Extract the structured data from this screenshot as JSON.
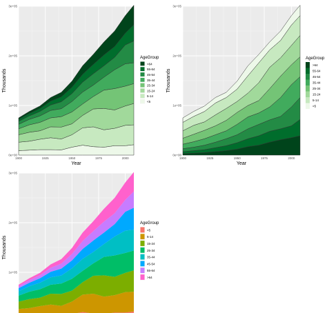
{
  "chart_data": [
    {
      "type": "area",
      "stacking": "stacked, inverted order (<5 at bottom)",
      "palette": "Greens (dark for >64)",
      "xlabel": "Year",
      "ylabel": "Thousands",
      "xlim": [
        1900,
        2008
      ],
      "ylim": [
        0,
        300000
      ],
      "x_ticks": [
        "1900",
        "1925",
        "1950",
        "1975",
        "2000"
      ],
      "y_ticks": [
        "0e+00",
        "1e+05",
        "2e+05",
        "3e+05"
      ],
      "grid": true,
      "legend_placement": "right",
      "legend_title": "AgeGroup",
      "legend_labels": [
        ">64",
        "55-64",
        "45-54",
        "35-44",
        "25-34",
        "15-24",
        "5-14",
        "<5"
      ],
      "series_colors": [
        "#00441b",
        "#006d2c",
        "#238b45",
        "#41ab5d",
        "#74c476",
        "#a1d99b",
        "#c7e9c0",
        "#edf8e9"
      ],
      "x": [
        1900,
        1910,
        1920,
        1930,
        1940,
        1950,
        1960,
        1970,
        1980,
        1990,
        2000,
        2008
      ],
      "series": [
        {
          "name": "<5",
          "values": [
            9000,
            10000,
            11000,
            11000,
            10500,
            16000,
            20000,
            17000,
            16000,
            19000,
            19000,
            21000
          ]
        },
        {
          "name": "5-14",
          "values": [
            17000,
            18000,
            21000,
            24000,
            22000,
            25000,
            35000,
            40000,
            35000,
            35000,
            41000,
            40000
          ]
        },
        {
          "name": "15-24",
          "values": [
            15000,
            18000,
            17000,
            22000,
            24000,
            22000,
            25000,
            36000,
            43000,
            37000,
            39000,
            43000
          ]
        },
        {
          "name": "25-34",
          "values": [
            12000,
            15000,
            17000,
            18000,
            21000,
            24000,
            23000,
            25000,
            37000,
            43000,
            40000,
            40000
          ]
        },
        {
          "name": "35-44",
          "values": [
            9000,
            11000,
            13000,
            15000,
            16000,
            21000,
            24000,
            23000,
            26000,
            38000,
            45000,
            42000
          ]
        },
        {
          "name": "45-54",
          "values": [
            6000,
            7000,
            9000,
            11000,
            14000,
            16000,
            20000,
            23000,
            23000,
            25000,
            38000,
            44000
          ]
        },
        {
          "name": "55-64",
          "values": [
            4000,
            5000,
            6000,
            8000,
            10000,
            13000,
            16000,
            19000,
            22000,
            22000,
            24000,
            33000
          ]
        },
        {
          "name": ">64",
          "values": [
            3000,
            4000,
            5000,
            7000,
            9000,
            12000,
            17000,
            20000,
            26000,
            31000,
            35000,
            39000
          ]
        }
      ]
    },
    {
      "type": "area",
      "stacking": "stacked, default order (>64 at bottom)",
      "palette": "Greens (dark for >64)",
      "xlabel": "Year",
      "ylabel": "Thousands",
      "xlim": [
        1900,
        2008
      ],
      "ylim": [
        0,
        300000
      ],
      "x_ticks": [
        "1900",
        "1925",
        "1950",
        "1975",
        "2000"
      ],
      "y_ticks": [
        "0e+00",
        "1e+05",
        "2e+05",
        "3e+05"
      ],
      "grid": true,
      "legend_placement": "right",
      "legend_title": "AgeGroup",
      "legend_labels": [
        ">64",
        "55-64",
        "45-54",
        "35-44",
        "25-34",
        "15-24",
        "5-14",
        "<5"
      ],
      "series_colors": [
        "#00441b",
        "#006d2c",
        "#238b45",
        "#41ab5d",
        "#74c476",
        "#a1d99b",
        "#c7e9c0",
        "#edf8e9"
      ]
    },
    {
      "type": "area",
      "stacking": "stacked, no outlines (<5 on top)",
      "palette": "default hue",
      "ylabel": "Thousands",
      "xlim": [
        1900,
        2008
      ],
      "ylim": [
        0,
        300000
      ],
      "y_ticks": [
        "1e+05",
        "2e+05",
        "3e+05"
      ],
      "grid": true,
      "legend_placement": "right",
      "legend_title": "AgeGroup",
      "legend_labels": [
        "<5",
        "5-14",
        "15-24",
        "25-34",
        "35-44",
        "45-54",
        "55-64",
        ">64"
      ],
      "series_colors": [
        "#f8766d",
        "#cd9600",
        "#7cae00",
        "#00be67",
        "#00bfc4",
        "#00a9ff",
        "#c77cff",
        "#ff61cc"
      ]
    }
  ]
}
